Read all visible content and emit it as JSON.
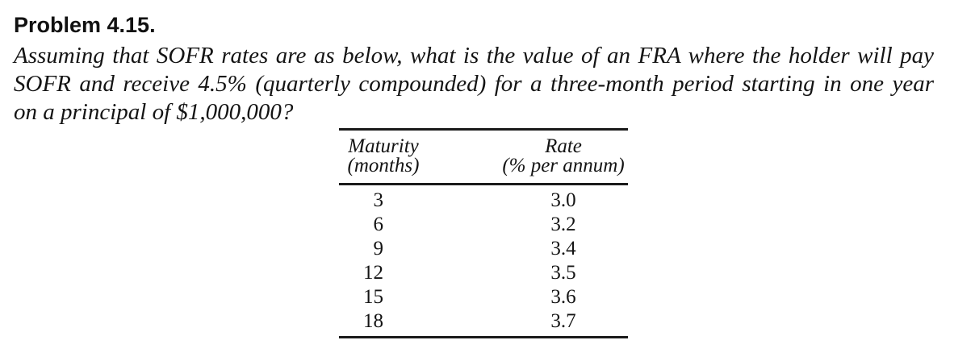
{
  "problem": {
    "title": "Problem 4.15.",
    "statement_lines": [
      "Assuming that SOFR rates are as below, what is the value of an FRA where the holder will pay",
      "SOFR and receive 4.5% (quarterly compounded) for a three-month period starting in one year",
      "on a principal of $1,000,000?"
    ]
  },
  "table": {
    "col1_header": {
      "line1": "Maturity",
      "line2": "(months)"
    },
    "col2_header": {
      "line1": "Rate",
      "line2": "(% per annum)"
    },
    "rows": [
      {
        "maturity": "3",
        "rate": "3.0"
      },
      {
        "maturity": "6",
        "rate": "3.2"
      },
      {
        "maturity": "9",
        "rate": "3.4"
      },
      {
        "maturity": "12",
        "rate": "3.5"
      },
      {
        "maturity": "15",
        "rate": "3.6"
      },
      {
        "maturity": "18",
        "rate": "3.7"
      }
    ]
  }
}
